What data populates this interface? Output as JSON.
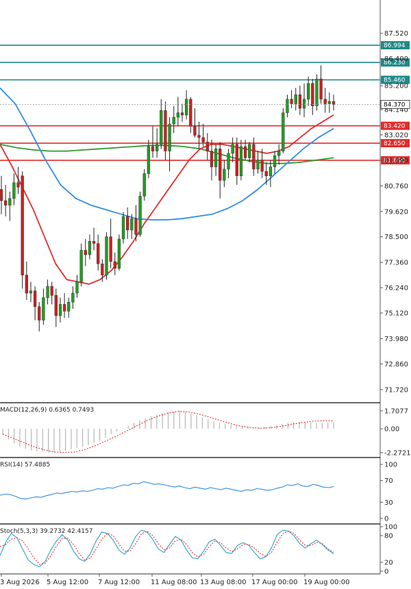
{
  "chart_data": {
    "type": "candlestick",
    "colors": {
      "bull": "#1fa01f",
      "bear": "#d11f1f",
      "ma_fast": "#e32b2b",
      "ma_mid": "#2f8de4",
      "ma_slow": "#2e9a2e",
      "level_resistance": "#1f8a8a",
      "level_support": "#e32b2b"
    },
    "price_axis": {
      "ticks": [
        "87.520",
        "86.400",
        "85.200",
        "84.140",
        "83.020",
        "81.890",
        "80.760",
        "79.620",
        "78.500",
        "77.360",
        "76.240",
        "75.120",
        "73.980",
        "72.860",
        "71.720"
      ],
      "ylim": [
        71.2,
        89.0
      ]
    },
    "time_axis": {
      "ticks": [
        "3 Aug 2026",
        "5 Aug 12:00",
        "7 Aug 12:00",
        "11 Aug 08:00",
        "13 Aug 08:00",
        "17 Aug 00:00",
        "19 Aug 00:00"
      ]
    },
    "levels": [
      {
        "value": 86.994,
        "label": "86.994",
        "kind": "resistance"
      },
      {
        "value": 86.23,
        "label": "86.230",
        "kind": "resistance"
      },
      {
        "value": 85.46,
        "label": "85.460",
        "kind": "resistance"
      },
      {
        "value": 83.42,
        "label": "83.420",
        "kind": "support"
      },
      {
        "value": 82.65,
        "label": "82.650",
        "kind": "support"
      },
      {
        "value": 81.89,
        "label": "81.890",
        "kind": "support"
      }
    ],
    "current_price": {
      "value": 84.37,
      "label": "84.370"
    },
    "candles": [
      [
        80.6,
        81.2,
        79.5,
        80.1
      ],
      [
        80.1,
        80.8,
        79.4,
        79.9
      ],
      [
        79.9,
        80.5,
        79.2,
        80.2
      ],
      [
        80.2,
        81.3,
        79.9,
        80.9
      ],
      [
        80.9,
        81.6,
        80.4,
        80.7
      ],
      [
        81.2,
        81.4,
        76.2,
        76.8
      ],
      [
        76.8,
        77.4,
        75.7,
        76.0
      ],
      [
        76.0,
        76.5,
        75.6,
        76.1
      ],
      [
        76.1,
        76.3,
        74.8,
        75.4
      ],
      [
        75.4,
        75.6,
        74.3,
        74.8
      ],
      [
        74.8,
        76.2,
        74.6,
        75.8
      ],
      [
        75.8,
        76.6,
        75.5,
        76.3
      ],
      [
        76.3,
        76.5,
        75.5,
        75.9
      ],
      [
        75.9,
        76.2,
        74.5,
        75.0
      ],
      [
        75.0,
        75.8,
        74.7,
        75.5
      ],
      [
        75.5,
        76.0,
        74.9,
        75.2
      ],
      [
        75.2,
        75.8,
        74.9,
        75.6
      ],
      [
        75.6,
        76.3,
        75.3,
        76.0
      ],
      [
        76.0,
        76.8,
        75.8,
        76.5
      ],
      [
        76.5,
        78.2,
        76.3,
        77.9
      ],
      [
        77.9,
        78.4,
        77.2,
        77.7
      ],
      [
        77.7,
        78.6,
        77.5,
        78.3
      ],
      [
        78.3,
        78.9,
        77.9,
        78.2
      ],
      [
        78.2,
        78.6,
        77.0,
        77.3
      ],
      [
        77.3,
        77.5,
        76.5,
        76.8
      ],
      [
        76.8,
        78.7,
        76.6,
        78.5
      ],
      [
        78.5,
        79.3,
        77.1,
        77.4
      ],
      [
        77.4,
        77.8,
        76.8,
        77.1
      ],
      [
        77.1,
        78.6,
        77.0,
        78.4
      ],
      [
        78.4,
        79.6,
        78.2,
        79.4
      ],
      [
        79.4,
        79.8,
        78.4,
        78.8
      ],
      [
        78.8,
        79.5,
        78.4,
        79.3
      ],
      [
        79.3,
        79.9,
        78.3,
        78.6
      ],
      [
        78.6,
        80.5,
        78.5,
        80.3
      ],
      [
        80.3,
        81.5,
        80.1,
        81.3
      ],
      [
        81.3,
        82.8,
        81.1,
        82.5
      ],
      [
        82.5,
        83.4,
        82.0,
        82.3
      ],
      [
        82.3,
        83.3,
        82.0,
        82.6
      ],
      [
        82.6,
        84.6,
        82.4,
        84.1
      ],
      [
        84.1,
        84.5,
        81.9,
        82.3
      ],
      [
        82.3,
        83.8,
        81.4,
        83.5
      ],
      [
        83.5,
        84.3,
        83.1,
        83.8
      ],
      [
        83.8,
        84.7,
        83.4,
        84.0
      ],
      [
        84.0,
        84.4,
        83.6,
        83.9
      ],
      [
        83.9,
        85.0,
        83.7,
        84.6
      ],
      [
        84.6,
        84.7,
        83.1,
        83.4
      ],
      [
        83.4,
        84.2,
        82.9,
        83.0
      ],
      [
        83.0,
        83.6,
        82.4,
        82.9
      ],
      [
        82.9,
        83.5,
        82.5,
        82.7
      ],
      [
        82.7,
        83.1,
        81.9,
        82.3
      ],
      [
        82.3,
        82.8,
        81.0,
        81.6
      ],
      [
        81.6,
        82.6,
        81.2,
        82.4
      ],
      [
        82.4,
        82.7,
        80.2,
        81.0
      ],
      [
        81.0,
        81.9,
        80.7,
        81.5
      ],
      [
        81.5,
        82.4,
        81.1,
        82.2
      ],
      [
        82.2,
        82.9,
        81.8,
        82.6
      ],
      [
        82.6,
        82.9,
        80.8,
        81.2
      ],
      [
        81.2,
        82.8,
        81.0,
        82.5
      ],
      [
        82.5,
        82.8,
        81.9,
        82.0
      ],
      [
        82.0,
        82.7,
        81.8,
        82.6
      ],
      [
        82.6,
        82.9,
        81.2,
        81.5
      ],
      [
        81.5,
        82.3,
        81.3,
        81.9
      ],
      [
        81.9,
        82.4,
        81.1,
        81.4
      ],
      [
        81.4,
        81.8,
        80.8,
        81.2
      ],
      [
        81.2,
        81.9,
        80.7,
        81.6
      ],
      [
        81.6,
        82.3,
        81.3,
        82.1
      ],
      [
        82.1,
        82.6,
        81.7,
        82.3
      ],
      [
        82.3,
        84.2,
        82.2,
        84.0
      ],
      [
        84.0,
        84.8,
        83.8,
        84.6
      ],
      [
        84.6,
        85.0,
        84.2,
        84.4
      ],
      [
        84.4,
        85.1,
        84.1,
        84.8
      ],
      [
        84.8,
        85.2,
        83.9,
        84.2
      ],
      [
        84.2,
        85.3,
        83.8,
        84.6
      ],
      [
        84.6,
        85.6,
        84.3,
        85.3
      ],
      [
        85.3,
        85.5,
        83.9,
        84.3
      ],
      [
        84.3,
        85.7,
        84.1,
        85.5
      ],
      [
        85.5,
        86.1,
        84.4,
        84.6
      ],
      [
        84.6,
        85.1,
        84.0,
        84.4
      ],
      [
        84.4,
        84.9,
        84.0,
        84.5
      ],
      [
        84.5,
        84.8,
        84.1,
        84.37
      ]
    ],
    "ma_fast": [
      82.6,
      81.7,
      80.7,
      79.7,
      78.5,
      77.3,
      76.6,
      76.5,
      76.4,
      76.6,
      77.0,
      77.6,
      78.3,
      79.1,
      79.8,
      80.5,
      81.2,
      81.9,
      82.4,
      82.6,
      82.6,
      82.5,
      82.4,
      82.3,
      82.2,
      82.3,
      82.5,
      82.9,
      83.3,
      83.6,
      83.9
    ],
    "ma_mid": [
      85.1,
      84.4,
      83.2,
      81.9,
      80.8,
      80.2,
      79.9,
      79.7,
      79.5,
      79.3,
      79.25,
      79.25,
      79.3,
      79.4,
      79.5,
      79.75,
      80.1,
      80.6,
      81.2,
      81.8,
      82.4,
      82.9,
      83.3
    ],
    "ma_slow": [
      82.6,
      82.45,
      82.35,
      82.3,
      82.3,
      82.35,
      82.4,
      82.45,
      82.5,
      82.55,
      82.55,
      82.5,
      82.4,
      82.2,
      82.0,
      81.85,
      81.75,
      81.75,
      81.8,
      81.9,
      82.0
    ],
    "macd": {
      "title": "MACD(12,26,9) 0.6365 0.7493",
      "ticks": [
        "1.7077",
        "0.00",
        "-2.2721"
      ],
      "ylim": [
        -2.6,
        2.35
      ],
      "hist": [
        -0.6,
        -1.0,
        -1.4,
        -1.7,
        -1.9,
        -2.05,
        -2.15,
        -2.2,
        -2.25,
        -2.27,
        -2.2,
        -2.1,
        -1.95,
        -1.8,
        -1.7,
        -1.55,
        -1.35,
        -1.1,
        -0.8,
        -0.5,
        -0.25,
        0.05,
        0.3,
        0.55,
        0.8,
        1.0,
        1.2,
        1.35,
        1.5,
        1.6,
        1.65,
        1.7,
        1.6,
        1.45,
        1.3,
        1.1,
        0.9,
        0.7,
        0.55,
        0.45,
        0.35,
        0.25,
        0.2,
        0.15,
        0.1,
        0.1,
        0.15,
        0.25,
        0.35,
        0.45,
        0.55,
        0.6,
        0.65,
        0.65,
        0.6,
        0.55,
        0.55,
        0.6,
        0.64
      ],
      "signal": [
        -0.5,
        -0.9,
        -1.3,
        -1.7,
        -2.0,
        -2.2,
        -2.26,
        -2.2,
        -1.95,
        -1.6,
        -1.15,
        -0.7,
        -0.2,
        0.3,
        0.8,
        1.2,
        1.5,
        1.65,
        1.6,
        1.4,
        1.1,
        0.8,
        0.5,
        0.25,
        0.12,
        0.05,
        0.1,
        0.25,
        0.45,
        0.6,
        0.72,
        0.76,
        0.75
      ]
    },
    "rsi": {
      "title": "RSI(14) 57.4885",
      "ticks": [
        "100",
        "70",
        "30",
        "0"
      ],
      "ylim": [
        0,
        100
      ],
      "values": [
        43,
        45,
        44,
        41,
        37,
        36,
        38,
        40,
        39,
        42,
        44,
        47,
        46,
        48,
        50,
        49,
        51,
        50,
        52,
        55,
        54,
        57,
        56,
        59,
        62,
        61,
        65,
        64,
        68,
        66,
        63,
        64,
        62,
        60,
        58,
        60,
        57,
        55,
        58,
        56,
        54,
        57,
        55,
        53,
        56,
        54,
        52,
        50,
        53,
        52,
        55,
        54,
        52,
        53,
        56,
        58,
        62,
        61,
        64,
        60,
        59,
        63,
        61,
        58,
        57,
        59
      ]
    },
    "stoch": {
      "title": "Stoch(5,3,3) 39.2732 42.4157",
      "ticks": [
        "100",
        "80",
        "20",
        "0"
      ],
      "ylim": [
        0,
        100
      ],
      "k": [
        35,
        65,
        85,
        75,
        50,
        25,
        15,
        10,
        22,
        48,
        68,
        82,
        70,
        45,
        28,
        22,
        40,
        68,
        88,
        85,
        70,
        48,
        38,
        52,
        78,
        92,
        88,
        72,
        50,
        42,
        60,
        78,
        70,
        48,
        30,
        28,
        45,
        66,
        72,
        58,
        42,
        40,
        58,
        64,
        58,
        42,
        28,
        32,
        52,
        82,
        92,
        90,
        80,
        62,
        52,
        62,
        70,
        60,
        48,
        39.27
      ],
      "d": [
        55,
        60,
        72,
        75,
        68,
        50,
        30,
        15,
        18,
        35,
        56,
        74,
        74,
        60,
        40,
        25,
        30,
        50,
        72,
        85,
        80,
        62,
        45,
        45,
        62,
        84,
        90,
        80,
        62,
        48,
        52,
        68,
        72,
        60,
        42,
        32,
        38,
        55,
        68,
        64,
        52,
        44,
        50,
        60,
        60,
        52,
        40,
        33,
        42,
        65,
        84,
        90,
        85,
        70,
        58,
        58,
        65,
        62,
        50,
        42.42
      ]
    }
  }
}
